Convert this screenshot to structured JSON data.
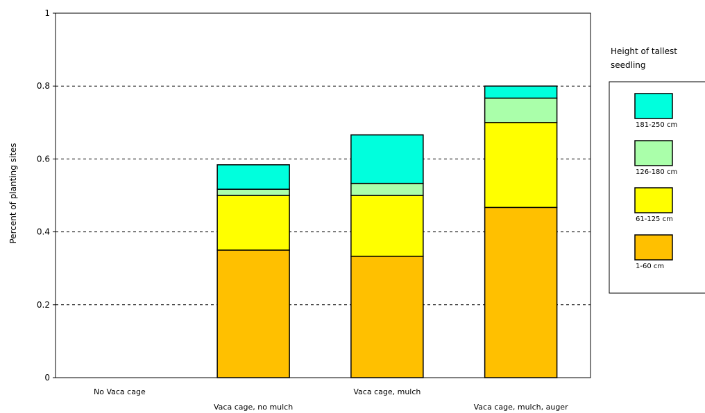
{
  "chart_data": {
    "type": "bar",
    "stacked": true,
    "title": "",
    "xlabel": "",
    "ylabel": "Percent of planting sites",
    "ylim": [
      0,
      1
    ],
    "yticks": [
      "0",
      "0.2",
      "0.4",
      "0.6",
      "0.8",
      "1"
    ],
    "grid": "dashed horizontal at 0.2, 0.4, 0.6, 0.8",
    "legend": {
      "title": "Height of tallest seedling",
      "title_lines": [
        "Height of tallest",
        "seedling"
      ],
      "placement": "right",
      "entries": [
        "181-250 cm",
        "126-180 cm",
        "61-125 cm",
        "1-60 cm"
      ]
    },
    "categories": [
      "No Vaca cage",
      "Vaca cage, no mulch",
      "Vaca cage, mulch",
      "Vaca cage, mulch, auger"
    ],
    "series": [
      {
        "name": "1-60 cm",
        "color": "#FFC000",
        "values": [
          0,
          0.35,
          0.333,
          0.467
        ]
      },
      {
        "name": "61-125 cm",
        "color": "#FFFF00",
        "values": [
          0,
          0.15,
          0.167,
          0.233
        ]
      },
      {
        "name": "126-180 cm",
        "color": "#AAFFAA",
        "values": [
          0,
          0.017,
          0.033,
          0.067
        ]
      },
      {
        "name": "181-250 cm",
        "color": "#00FFDD",
        "values": [
          0,
          0.067,
          0.133,
          0.033
        ]
      }
    ]
  }
}
